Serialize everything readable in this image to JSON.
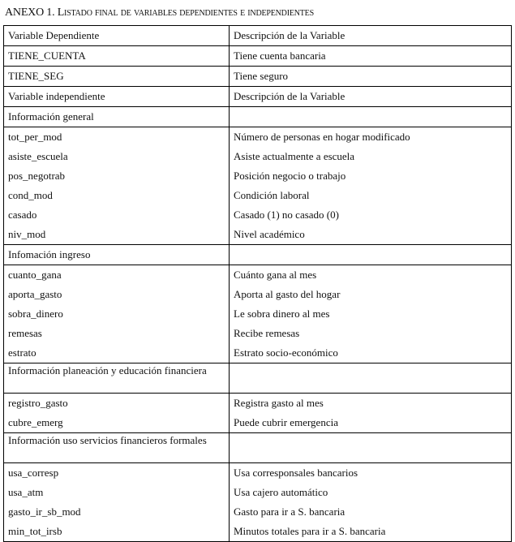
{
  "title": "ANEXO 1. Listado final de variables dependientes e independientes",
  "header": {
    "col1": "Variable Dependiente",
    "col2": "Descripción de la Variable"
  },
  "dependent": [
    {
      "name": "TIENE_CUENTA",
      "desc": "Tiene cuenta bancaria"
    },
    {
      "name": "TIENE_SEG",
      "desc": "Tiene seguro"
    }
  ],
  "independent_header": {
    "col1": "Variable independiente",
    "col2": "Descripción de la Variable"
  },
  "sections": [
    {
      "label": "Información general",
      "two_line": false,
      "items": [
        {
          "name": "tot_per_mod",
          "desc": "Número de personas en hogar modificado"
        },
        {
          "name": "asiste_escuela",
          "desc": "Asiste actualmente a escuela"
        },
        {
          "name": "pos_negotrab",
          "desc": "Posición negocio o trabajo"
        },
        {
          "name": "cond_mod",
          "desc": "Condición laboral"
        },
        {
          "name": "casado",
          "desc": "Casado (1) no casado (0)"
        },
        {
          "name": "niv_mod",
          "desc": "Nivel académico"
        }
      ]
    },
    {
      "label": "Infomación ingreso",
      "two_line": false,
      "items": [
        {
          "name": "cuanto_gana",
          "desc": "Cuánto gana al mes"
        },
        {
          "name": "aporta_gasto",
          "desc": "Aporta al gasto del hogar"
        },
        {
          "name": "sobra_dinero",
          "desc": "Le sobra dinero al mes"
        },
        {
          "name": "remesas",
          "desc": "Recibe remesas"
        },
        {
          "name": "estrato",
          "desc": "Estrato socio-económico"
        }
      ]
    },
    {
      "label": "Información planeación y educación financiera",
      "two_line": true,
      "items": [
        {
          "name": "registro_gasto",
          "desc": "Registra gasto al mes"
        },
        {
          "name": "cubre_emerg",
          "desc": "Puede cubrir emergencia"
        }
      ]
    },
    {
      "label": "Información uso servicios financieros formales",
      "two_line": true,
      "items": [
        {
          "name": "usa_corresp",
          "desc": "Usa corresponsales bancarios"
        },
        {
          "name": "usa_atm",
          "desc": "Usa cajero automático"
        },
        {
          "name": "gasto_ir_sb_mod",
          "desc": "Gasto para ir a S. bancaria"
        },
        {
          "name": "min_tot_irsb",
          "desc": "Minutos totales para ir a S. bancaria"
        }
      ]
    }
  ]
}
